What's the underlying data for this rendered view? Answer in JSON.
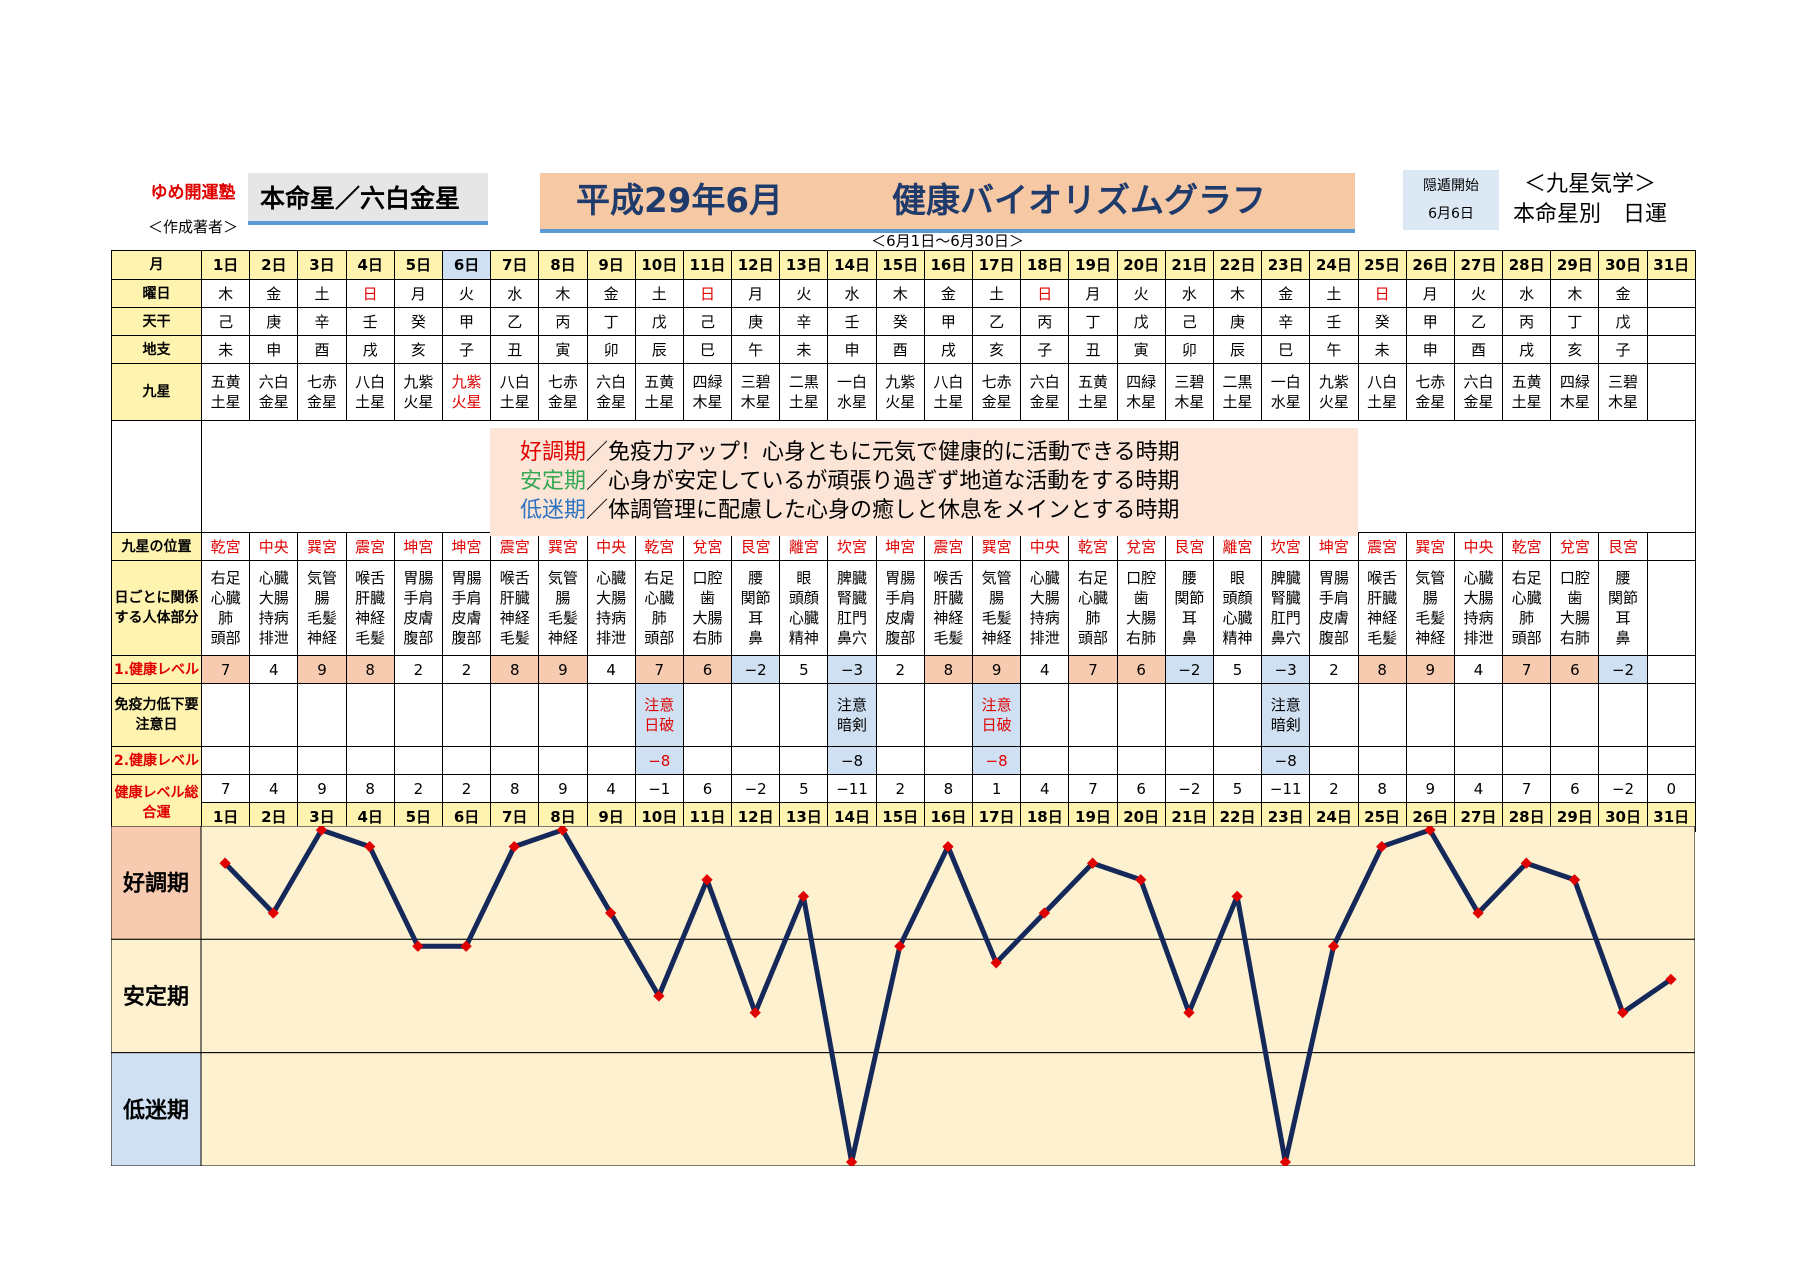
{
  "header": {
    "brand": "ゆめ開運塾",
    "author": "＜作成著者＞",
    "honmei": "本命星／六白金星",
    "title_date": "平成29年6月",
    "title_main": "健康バイオリズムグラフ",
    "subtitle": "＜6月1日～6月30日＞",
    "inton_label": "隠遁開始",
    "inton_date": "6月6日",
    "kyusei_title": "＜九星気学＞",
    "kyusei_sub": "本命星別　日運"
  },
  "row_labels": {
    "month": "月",
    "weekday": "曜日",
    "tenkan": "天干",
    "chishi": "地支",
    "kyusei": "九星",
    "position": "九星の位置",
    "body": "日ごとに関係する人体部分",
    "level1": "1.健康レベル",
    "caution": "免疫力低下要注意日",
    "level2": "2.健康レベル",
    "total": "健康レベル総合運"
  },
  "days": [
    "1日",
    "2日",
    "3日",
    "4日",
    "5日",
    "6日",
    "7日",
    "8日",
    "9日",
    "10日",
    "11日",
    "12日",
    "13日",
    "14日",
    "15日",
    "16日",
    "17日",
    "18日",
    "19日",
    "20日",
    "21日",
    "22日",
    "23日",
    "24日",
    "25日",
    "26日",
    "27日",
    "28日",
    "29日",
    "30日",
    "31日"
  ],
  "weekday": [
    "木",
    "金",
    "土",
    "日",
    "月",
    "火",
    "水",
    "木",
    "金",
    "土",
    "日",
    "月",
    "火",
    "水",
    "木",
    "金",
    "土",
    "日",
    "月",
    "火",
    "水",
    "木",
    "金",
    "土",
    "日",
    "月",
    "火",
    "水",
    "木",
    "金",
    ""
  ],
  "tenkan": [
    "己",
    "庚",
    "辛",
    "壬",
    "癸",
    "甲",
    "乙",
    "丙",
    "丁",
    "戊",
    "己",
    "庚",
    "辛",
    "壬",
    "癸",
    "甲",
    "乙",
    "丙",
    "丁",
    "戊",
    "己",
    "庚",
    "辛",
    "壬",
    "癸",
    "甲",
    "乙",
    "丙",
    "丁",
    "戊",
    ""
  ],
  "chishi": [
    "未",
    "申",
    "酉",
    "戌",
    "亥",
    "子",
    "丑",
    "寅",
    "卯",
    "辰",
    "巳",
    "午",
    "未",
    "申",
    "酉",
    "戌",
    "亥",
    "子",
    "丑",
    "寅",
    "卯",
    "辰",
    "巳",
    "午",
    "未",
    "申",
    "酉",
    "戌",
    "亥",
    "子",
    ""
  ],
  "kyusei_star": [
    [
      "五黄",
      "土星"
    ],
    [
      "六白",
      "金星"
    ],
    [
      "七赤",
      "金星"
    ],
    [
      "八白",
      "土星"
    ],
    [
      "九紫",
      "火星"
    ],
    [
      "九紫",
      "火星"
    ],
    [
      "八白",
      "土星"
    ],
    [
      "七赤",
      "金星"
    ],
    [
      "六白",
      "金星"
    ],
    [
      "五黄",
      "土星"
    ],
    [
      "四緑",
      "木星"
    ],
    [
      "三碧",
      "木星"
    ],
    [
      "二黒",
      "土星"
    ],
    [
      "一白",
      "水星"
    ],
    [
      "九紫",
      "火星"
    ],
    [
      "八白",
      "土星"
    ],
    [
      "七赤",
      "金星"
    ],
    [
      "六白",
      "金星"
    ],
    [
      "五黄",
      "土星"
    ],
    [
      "四緑",
      "木星"
    ],
    [
      "三碧",
      "木星"
    ],
    [
      "二黒",
      "土星"
    ],
    [
      "一白",
      "水星"
    ],
    [
      "九紫",
      "火星"
    ],
    [
      "八白",
      "土星"
    ],
    [
      "七赤",
      "金星"
    ],
    [
      "六白",
      "金星"
    ],
    [
      "五黄",
      "土星"
    ],
    [
      "四緑",
      "木星"
    ],
    [
      "三碧",
      "木星"
    ],
    [
      "",
      ""
    ]
  ],
  "legend": [
    {
      "term": "好調期",
      "text": "／免疫力アップ！心身ともに元気で健康的に活動できる時期"
    },
    {
      "term": "安定期",
      "text": "／心身が安定しているが頑張り過ぎず地道な活動をする時期"
    },
    {
      "term": "低迷期",
      "text": "／体調管理に配慮した心身の癒しと休息をメインとする時期"
    }
  ],
  "position": [
    "乾宮",
    "中央",
    "巽宮",
    "震宮",
    "坤宮",
    "坤宮",
    "震宮",
    "巽宮",
    "中央",
    "乾宮",
    "兌宮",
    "艮宮",
    "離宮",
    "坎宮",
    "坤宮",
    "震宮",
    "巽宮",
    "中央",
    "乾宮",
    "兌宮",
    "艮宮",
    "離宮",
    "坎宮",
    "坤宮",
    "震宮",
    "巽宮",
    "中央",
    "乾宮",
    "兌宮",
    "艮宮",
    ""
  ],
  "body": [
    [
      "右足",
      "心臓",
      "肺",
      "頭部"
    ],
    [
      "心臓",
      "大腸",
      "持病",
      "排泄"
    ],
    [
      "気管",
      "腸",
      "毛髪",
      "神経"
    ],
    [
      "喉舌",
      "肝臓",
      "神経",
      "毛髪"
    ],
    [
      "胃腸",
      "手肩",
      "皮膚",
      "腹部"
    ],
    [
      "胃腸",
      "手肩",
      "皮膚",
      "腹部"
    ],
    [
      "喉舌",
      "肝臓",
      "神経",
      "毛髪"
    ],
    [
      "気管",
      "腸",
      "毛髪",
      "神経"
    ],
    [
      "心臓",
      "大腸",
      "持病",
      "排泄"
    ],
    [
      "右足",
      "心臓",
      "肺",
      "頭部"
    ],
    [
      "口腔",
      "歯",
      "大腸",
      "右肺"
    ],
    [
      "腰",
      "関節",
      "耳",
      "鼻"
    ],
    [
      "眼",
      "頭顔",
      "心臓",
      "精神"
    ],
    [
      "脾臓",
      "腎臓",
      "肛門",
      "鼻穴"
    ],
    [
      "胃腸",
      "手肩",
      "皮膚",
      "腹部"
    ],
    [
      "喉舌",
      "肝臓",
      "神経",
      "毛髪"
    ],
    [
      "気管",
      "腸",
      "毛髪",
      "神経"
    ],
    [
      "心臓",
      "大腸",
      "持病",
      "排泄"
    ],
    [
      "右足",
      "心臓",
      "肺",
      "頭部"
    ],
    [
      "口腔",
      "歯",
      "大腸",
      "右肺"
    ],
    [
      "腰",
      "関節",
      "耳",
      "鼻"
    ],
    [
      "眼",
      "頭顔",
      "心臓",
      "精神"
    ],
    [
      "脾臓",
      "腎臓",
      "肛門",
      "鼻穴"
    ],
    [
      "胃腸",
      "手肩",
      "皮膚",
      "腹部"
    ],
    [
      "喉舌",
      "肝臓",
      "神経",
      "毛髪"
    ],
    [
      "気管",
      "腸",
      "毛髪",
      "神経"
    ],
    [
      "心臓",
      "大腸",
      "持病",
      "排泄"
    ],
    [
      "右足",
      "心臓",
      "肺",
      "頭部"
    ],
    [
      "口腔",
      "歯",
      "大腸",
      "右肺"
    ],
    [
      "腰",
      "関節",
      "耳",
      "鼻"
    ],
    [
      "",
      "",
      "",
      ""
    ]
  ],
  "level1": [
    "7",
    "4",
    "9",
    "8",
    "2",
    "2",
    "8",
    "9",
    "4",
    "7",
    "6",
    "−2",
    "5",
    "−3",
    "2",
    "8",
    "9",
    "4",
    "7",
    "6",
    "−2",
    "5",
    "−3",
    "2",
    "8",
    "9",
    "4",
    "7",
    "6",
    "−2",
    ""
  ],
  "caution": {
    "10日": [
      "注意",
      "日破"
    ],
    "14日": [
      "注意",
      "暗剣"
    ],
    "17日": [
      "注意",
      "日破"
    ],
    "23日": [
      "注意",
      "暗剣"
    ]
  },
  "level2": {
    "10日": "−8",
    "14日": "−8",
    "17日": "−8",
    "23日": "−8"
  },
  "total_labels": [
    "7",
    "4",
    "9",
    "8",
    "2",
    "2",
    "8",
    "9",
    "4",
    "−1",
    "6",
    "−2",
    "5",
    "−11",
    "2",
    "8",
    "1",
    "4",
    "7",
    "6",
    "−2",
    "5",
    "−11",
    "2",
    "8",
    "9",
    "4",
    "7",
    "6",
    "−2",
    "0"
  ],
  "colors": {
    "good": "#f7cbb0",
    "stable": "#fdf1d0",
    "low": "#cfe0f2",
    "line": "#14285a",
    "marker": "#e00000",
    "header_yellow": "#fff3b0"
  },
  "chart_data": {
    "type": "line",
    "x": [
      "1日",
      "2日",
      "3日",
      "4日",
      "5日",
      "6日",
      "7日",
      "8日",
      "9日",
      "10日",
      "11日",
      "12日",
      "13日",
      "14日",
      "15日",
      "16日",
      "17日",
      "18日",
      "19日",
      "20日",
      "21日",
      "22日",
      "23日",
      "24日",
      "25日",
      "26日",
      "27日",
      "28日",
      "29日",
      "30日",
      "31日"
    ],
    "values": [
      7,
      4,
      9,
      8,
      2,
      2,
      8,
      9,
      4,
      -1,
      6,
      -2,
      5,
      -11,
      2,
      8,
      1,
      4,
      7,
      6,
      -2,
      5,
      -11,
      2,
      8,
      9,
      4,
      7,
      6,
      -2,
      0
    ],
    "bands": [
      "好調期",
      "安定期",
      "低迷期"
    ],
    "ylim": [
      -11,
      9
    ],
    "grid": true
  }
}
